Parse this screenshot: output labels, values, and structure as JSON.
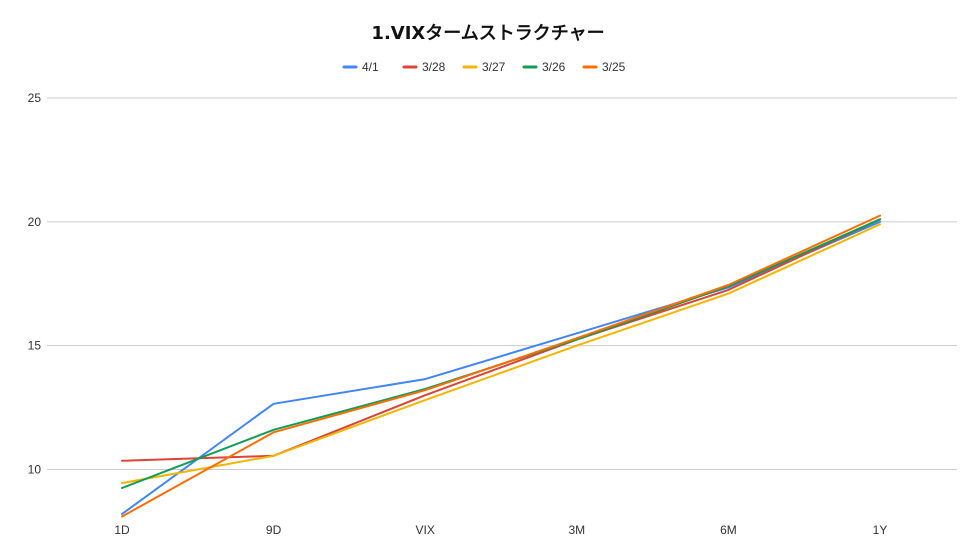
{
  "chart_data": {
    "type": "line",
    "title": "1.VIXタームストラクチャー",
    "xlabel": "",
    "ylabel": "",
    "categories": [
      "1D",
      "9D",
      "VIX",
      "3M",
      "6M",
      "1Y"
    ],
    "ylim": [
      8,
      25
    ],
    "yticks": [
      10,
      15,
      20,
      25
    ],
    "grid": true,
    "legend_position": "top",
    "series": [
      {
        "name": "4/1",
        "color": "#4285f4",
        "values": [
          8.2,
          12.65,
          13.65,
          15.5,
          17.35,
          20.0
        ]
      },
      {
        "name": "3/28",
        "color": "#db4437",
        "values": [
          10.35,
          10.55,
          13.0,
          15.25,
          17.25,
          20.1
        ]
      },
      {
        "name": "3/27",
        "color": "#f4b400",
        "values": [
          9.45,
          10.55,
          12.8,
          15.0,
          17.1,
          19.9
        ]
      },
      {
        "name": "3/26",
        "color": "#0f9d58",
        "values": [
          9.25,
          11.6,
          13.25,
          15.25,
          17.4,
          20.1
        ]
      },
      {
        "name": "3/25",
        "color": "#ff6d01",
        "values": [
          8.1,
          11.5,
          13.2,
          15.3,
          17.45,
          20.25
        ]
      }
    ]
  }
}
